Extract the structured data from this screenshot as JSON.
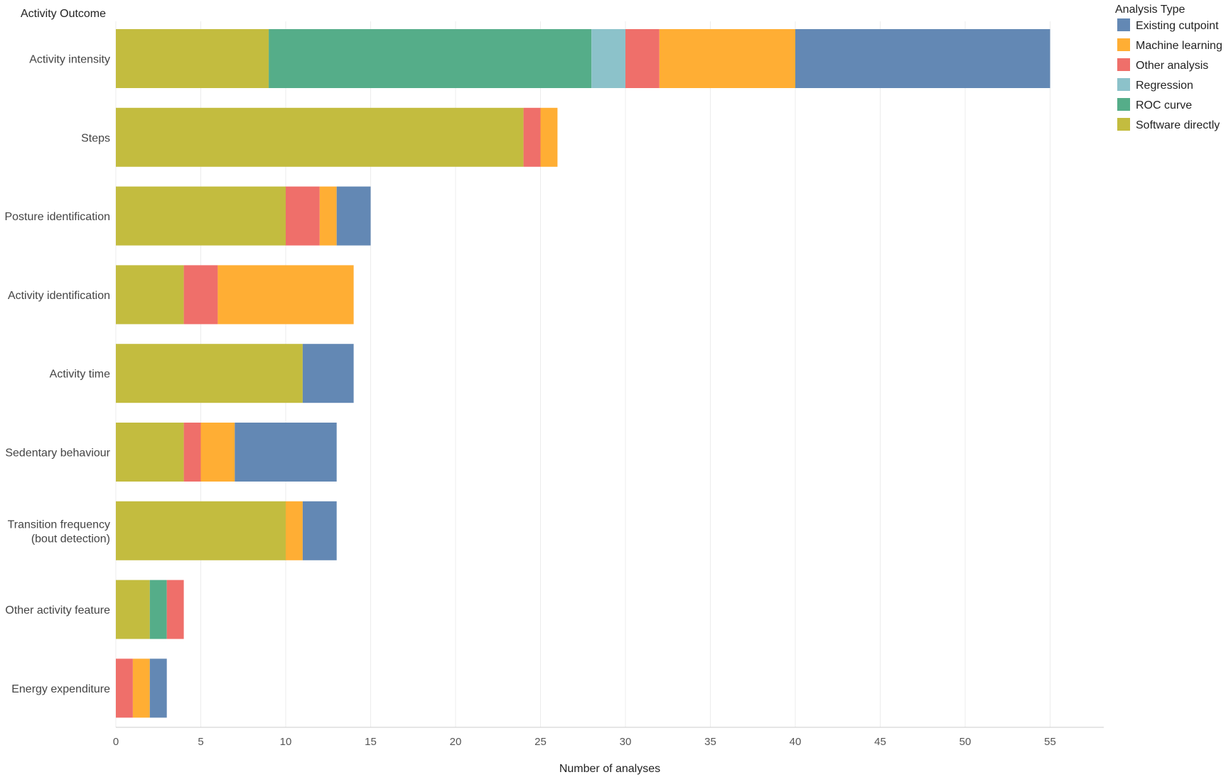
{
  "chart_data": {
    "type": "bar",
    "orientation": "horizontal",
    "stacked": true,
    "title": "",
    "ylabel": "Activity Outcome",
    "xlabel": "Number of analyses",
    "xlim": [
      0,
      58
    ],
    "xticks": [
      0,
      5,
      10,
      15,
      20,
      25,
      30,
      35,
      40,
      45,
      50,
      55
    ],
    "grid": true,
    "legend_position": "top-right",
    "legend_title": "Analysis Type",
    "categories": [
      [
        "Activity intensity"
      ],
      [
        "Steps"
      ],
      [
        "Posture identification"
      ],
      [
        "Activity identification"
      ],
      [
        "Activity time"
      ],
      [
        "Sedentary behaviour"
      ],
      [
        "Transition frequency",
        "(bout detection)"
      ],
      [
        "Other activity feature"
      ],
      [
        "Energy expenditure"
      ]
    ],
    "stack_order": [
      "Software directly",
      "ROC curve",
      "Regression",
      "Other analysis",
      "Machine learning",
      "Existing cutpoint"
    ],
    "series": [
      {
        "name": "Existing cutpoint",
        "color": "#6388b4",
        "values": [
          15,
          0,
          2,
          0,
          3,
          6,
          2,
          0,
          1
        ]
      },
      {
        "name": "Machine learning",
        "color": "#ffae34",
        "values": [
          8,
          1,
          1,
          8,
          0,
          2,
          1,
          0,
          1
        ]
      },
      {
        "name": "Other analysis",
        "color": "#ef6f6a",
        "values": [
          2,
          1,
          2,
          2,
          0,
          1,
          0,
          1,
          1
        ]
      },
      {
        "name": "Regression",
        "color": "#8cc2ca",
        "values": [
          2,
          0,
          0,
          0,
          0,
          0,
          0,
          0,
          0
        ]
      },
      {
        "name": "ROC curve",
        "color": "#55ad89",
        "values": [
          19,
          0,
          0,
          0,
          0,
          0,
          0,
          1,
          0
        ]
      },
      {
        "name": "Software directly",
        "color": "#c3bc3f",
        "values": [
          9,
          24,
          10,
          4,
          11,
          4,
          10,
          2,
          0
        ]
      }
    ]
  }
}
